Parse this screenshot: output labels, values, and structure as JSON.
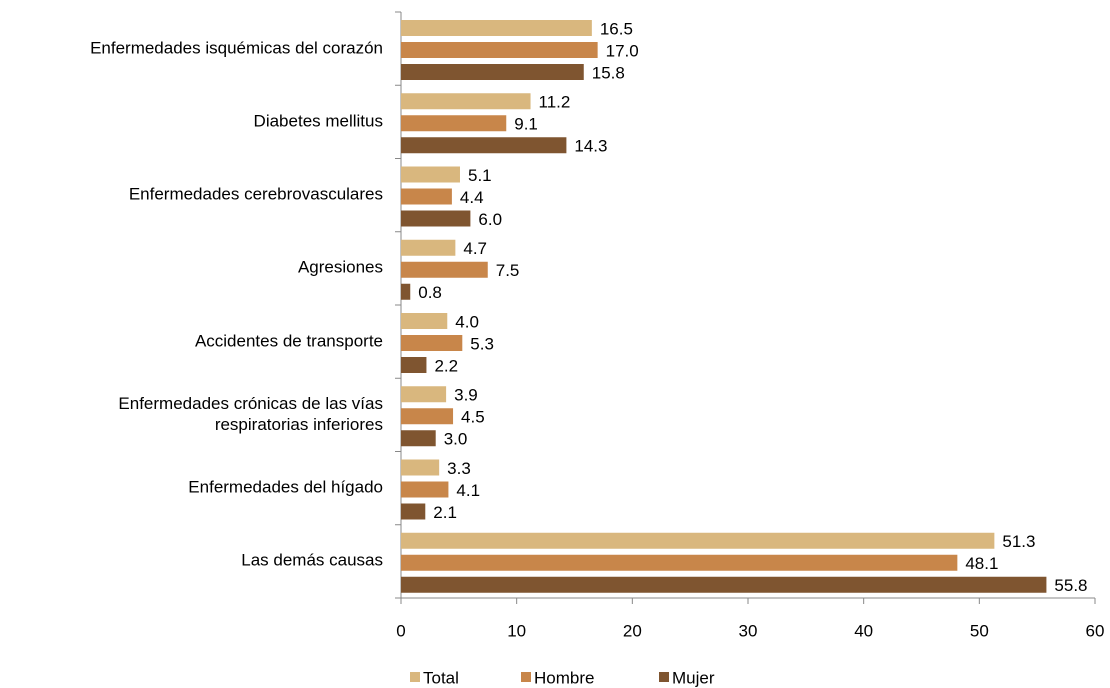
{
  "chart_data": {
    "type": "bar",
    "orientation": "horizontal",
    "categories": [
      "Enfermedades isquémicas del corazón",
      "Diabetes mellitus",
      "Enfermedades cerebrovasculares",
      "Agresiones",
      "Accidentes de transporte",
      "Enfermedades crónicas de las vías\nrespiratorias inferiores",
      "Enfermedades del hígado",
      "Las demás causas"
    ],
    "series": [
      {
        "name": "Total",
        "color": "#d9b77e",
        "values": [
          16.5,
          11.2,
          5.1,
          4.7,
          4.0,
          3.9,
          3.3,
          51.3
        ],
        "value_labels": [
          "16.5",
          "11.2",
          "5.1",
          "4.7",
          "4.0",
          "3.9",
          "3.3",
          "51.3"
        ]
      },
      {
        "name": "Hombre",
        "color": "#c8864a",
        "values": [
          17.0,
          9.1,
          4.4,
          7.5,
          5.3,
          4.5,
          4.1,
          48.1
        ],
        "value_labels": [
          "17.0",
          "9.1",
          "4.4",
          "7.5",
          "5.3",
          "4.5",
          "4.1",
          "48.1"
        ]
      },
      {
        "name": "Mujer",
        "color": "#7f5530",
        "values": [
          15.8,
          14.3,
          6.0,
          0.8,
          2.2,
          3.0,
          2.1,
          55.8
        ],
        "value_labels": [
          "15.8",
          "14.3",
          "6.0",
          "0.8",
          "2.2",
          "3.0",
          "2.1",
          "55.8"
        ]
      }
    ],
    "xlim": [
      0,
      60
    ],
    "xticks": [
      0,
      10,
      20,
      30,
      40,
      50,
      60
    ],
    "legend": "bottom"
  }
}
